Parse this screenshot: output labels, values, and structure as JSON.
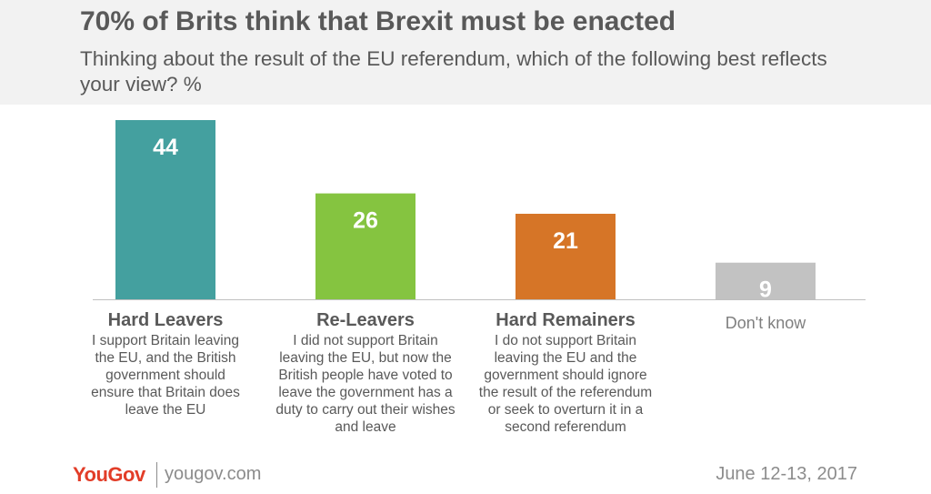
{
  "header": {
    "title": "70% of Brits think that Brexit must be enacted",
    "subtitle": "Thinking about the result of the EU referendum, which of the following best reflects your view? %"
  },
  "chart_data": {
    "type": "bar",
    "categories": [
      "Hard Leavers",
      "Re-Leavers",
      "Hard Remainers",
      "Don't know"
    ],
    "values": [
      44,
      26,
      21,
      9
    ],
    "colors": [
      "#44a09f",
      "#85c440",
      "#d67527",
      "#c2c2c2"
    ],
    "descriptions": [
      "I support Britain leaving the EU, and the British government should ensure that Britain does leave the EU",
      "I did not support Britain leaving the EU, but now the British people have voted to leave the government has a duty to carry out their wishes and leave",
      "I do not support Britain leaving the EU and the government should ignore the result of the referendum or seek to overturn it in a second referendum",
      ""
    ],
    "ylim": [
      0,
      44
    ],
    "xlabel": "",
    "ylabel": ""
  },
  "footer": {
    "logo_you": "You",
    "logo_gov": "Gov",
    "url": "yougov.com",
    "date": "June 12-13, 2017"
  }
}
